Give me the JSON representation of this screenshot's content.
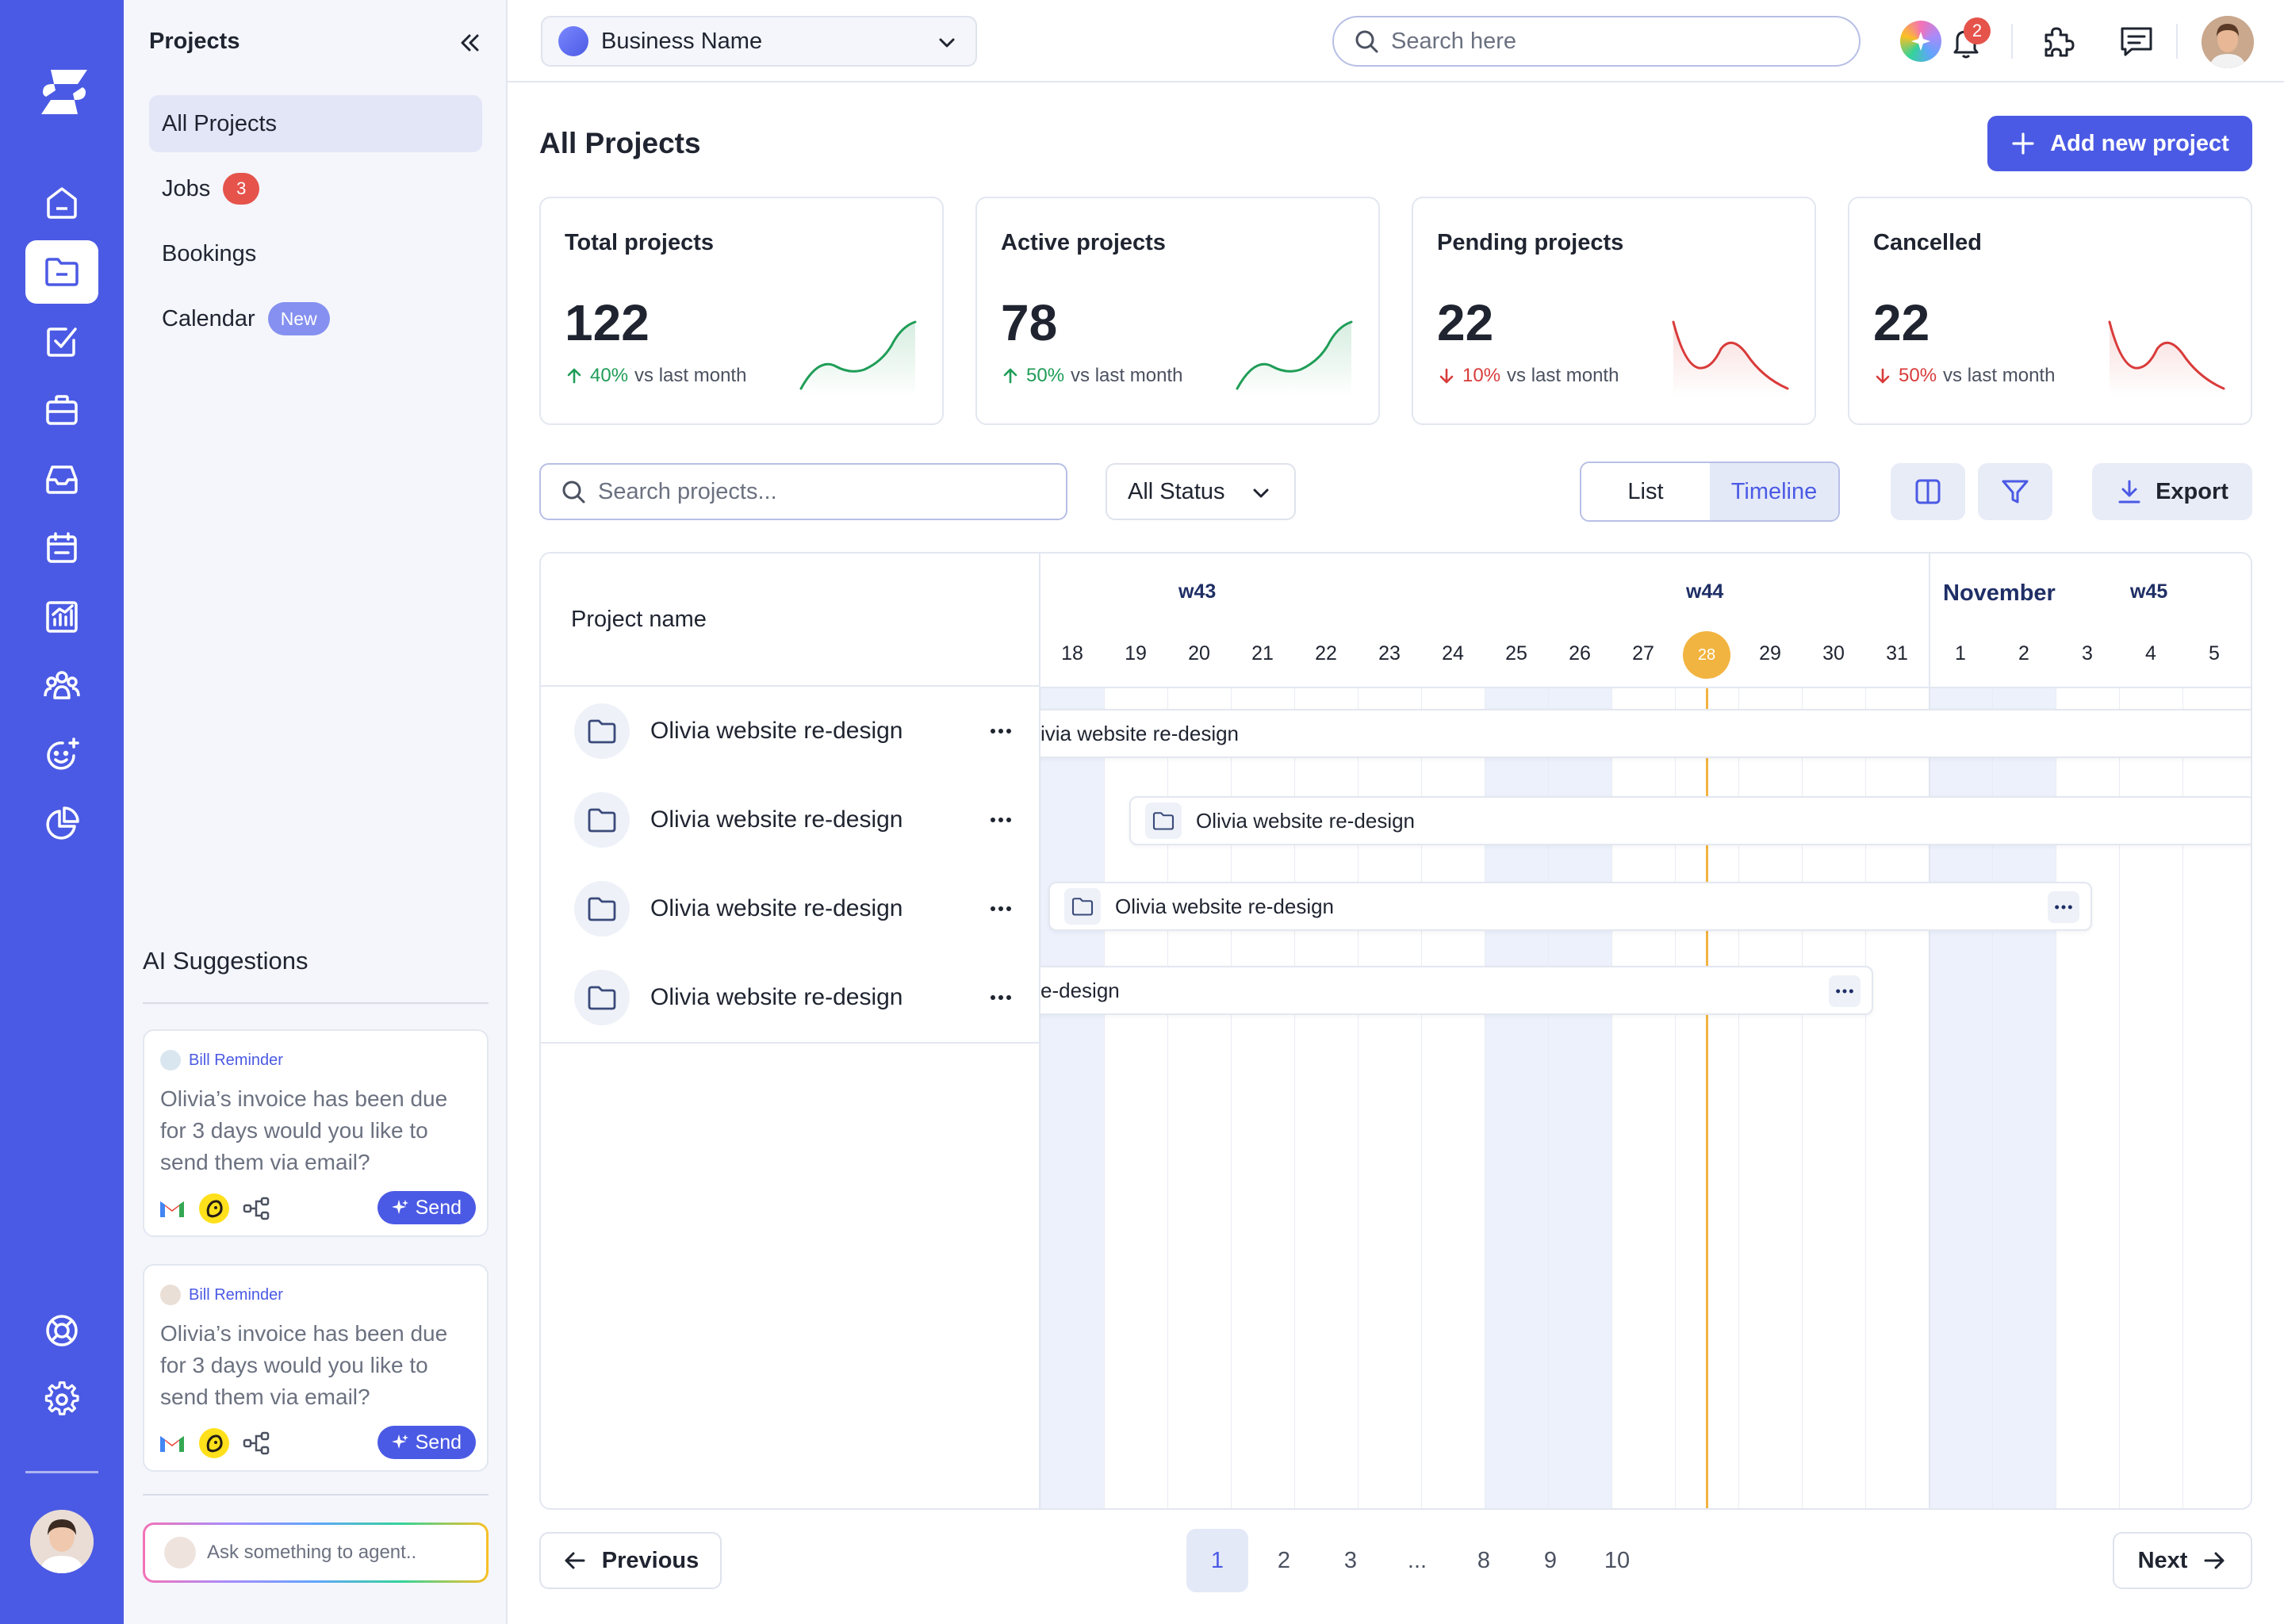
{
  "colors": {
    "accent": "#4b5ae4",
    "up": "#1f9d57",
    "down": "#d93b3b",
    "today": "#f2b440"
  },
  "rail": {
    "icons": [
      "logo-icon",
      "home-icon",
      "folder-icon",
      "check-square-icon",
      "briefcase-icon",
      "inbox-icon",
      "calendar-icon",
      "chart-icon",
      "team-icon",
      "ai-face-icon",
      "pie-chart-icon",
      "support-icon",
      "gear-icon"
    ]
  },
  "sidebar": {
    "title": "Projects",
    "items": [
      {
        "label": "All Projects"
      },
      {
        "label": "Jobs",
        "badge": "3"
      },
      {
        "label": "Bookings"
      },
      {
        "label": "Calendar",
        "badge": "New"
      }
    ],
    "ai_title": "AI Suggestions",
    "suggestions": [
      {
        "tag": "Bill Reminder",
        "message": "Olivia’s invoice has been due for 3 days would you like to send them via email?",
        "action": "Send"
      },
      {
        "tag": "Bill Reminder",
        "message": "Olivia’s invoice has been due for 3 days would you like to send them via email?",
        "action": "Send"
      }
    ],
    "agent_placeholder": "Ask something to agent.."
  },
  "topbar": {
    "business": "Business Name",
    "search_placeholder": "Search here",
    "notifications": "2"
  },
  "main": {
    "title": "All Projects",
    "add_button": "Add new project",
    "stats": [
      {
        "label": "Total projects",
        "value": "122",
        "pct": "40%",
        "trend": "up",
        "suffix": "vs last month"
      },
      {
        "label": "Active projects",
        "value": "78",
        "pct": "50%",
        "trend": "up",
        "suffix": "vs last month"
      },
      {
        "label": "Pending projects",
        "value": "22",
        "pct": "10%",
        "trend": "down",
        "suffix": "vs last month"
      },
      {
        "label": "Cancelled",
        "value": "22",
        "pct": "50%",
        "trend": "down",
        "suffix": "vs last month"
      }
    ],
    "project_search_placeholder": "Search projects...",
    "status_filter": "All Status",
    "view_list": "List",
    "view_timeline": "Timeline",
    "export": "Export"
  },
  "timeline": {
    "column_header": "Project name",
    "weeks": [
      "w43",
      "w44",
      "w45"
    ],
    "month": "November",
    "days": [
      "18",
      "19",
      "20",
      "21",
      "22",
      "23",
      "24",
      "25",
      "26",
      "27",
      "28",
      "29",
      "30",
      "31",
      "1",
      "2",
      "3",
      "4",
      "5"
    ],
    "today": "28",
    "projects": [
      {
        "name": "Olivia website re-design"
      },
      {
        "name": "Olivia website re-design"
      },
      {
        "name": "Olivia website re-design"
      },
      {
        "name": "Olivia website re-design"
      }
    ],
    "bars": [
      {
        "label": "ivia website re-design"
      },
      {
        "label": "Olivia website re-design"
      },
      {
        "label": "Olivia website re-design"
      },
      {
        "label": "e-design"
      }
    ]
  },
  "pagination": {
    "previous": "Previous",
    "next": "Next",
    "pages": [
      "1",
      "2",
      "3",
      "...",
      "8",
      "9",
      "10"
    ],
    "current": "1"
  }
}
